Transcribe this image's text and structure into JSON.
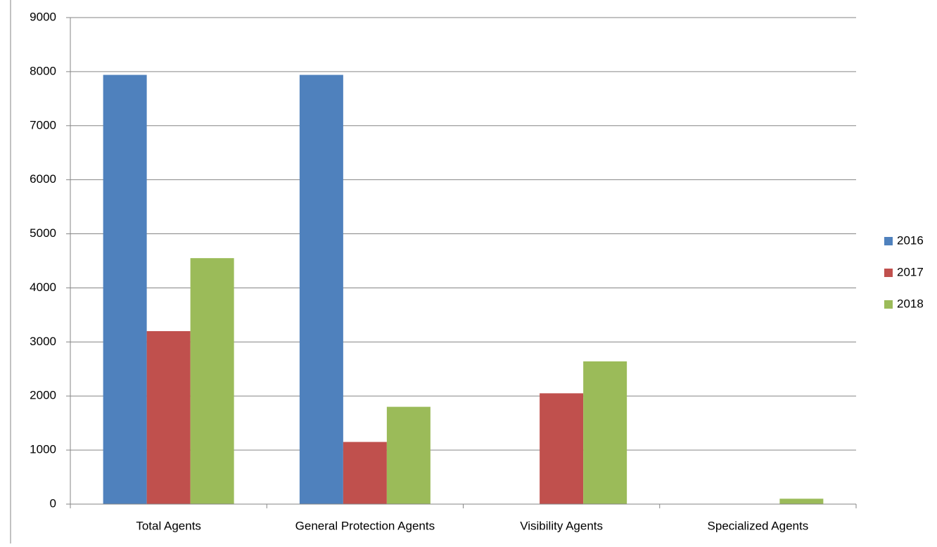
{
  "chart_data": {
    "type": "bar",
    "categories": [
      "Total Agents",
      "General Protection Agents",
      "Visibility Agents",
      "Specialized Agents"
    ],
    "series": [
      {
        "name": "2016",
        "color": "#4f81bd",
        "values": [
          7940,
          7940,
          0,
          0
        ]
      },
      {
        "name": "2017",
        "color": "#c0504d",
        "values": [
          3200,
          1150,
          2050,
          0
        ]
      },
      {
        "name": "2018",
        "color": "#9bbb59",
        "values": [
          4550,
          1800,
          2640,
          100
        ]
      }
    ],
    "ylim": [
      0,
      9000
    ],
    "yticks": [
      0,
      1000,
      2000,
      3000,
      4000,
      5000,
      6000,
      7000,
      8000,
      9000
    ],
    "grid": true,
    "legend": "right"
  }
}
